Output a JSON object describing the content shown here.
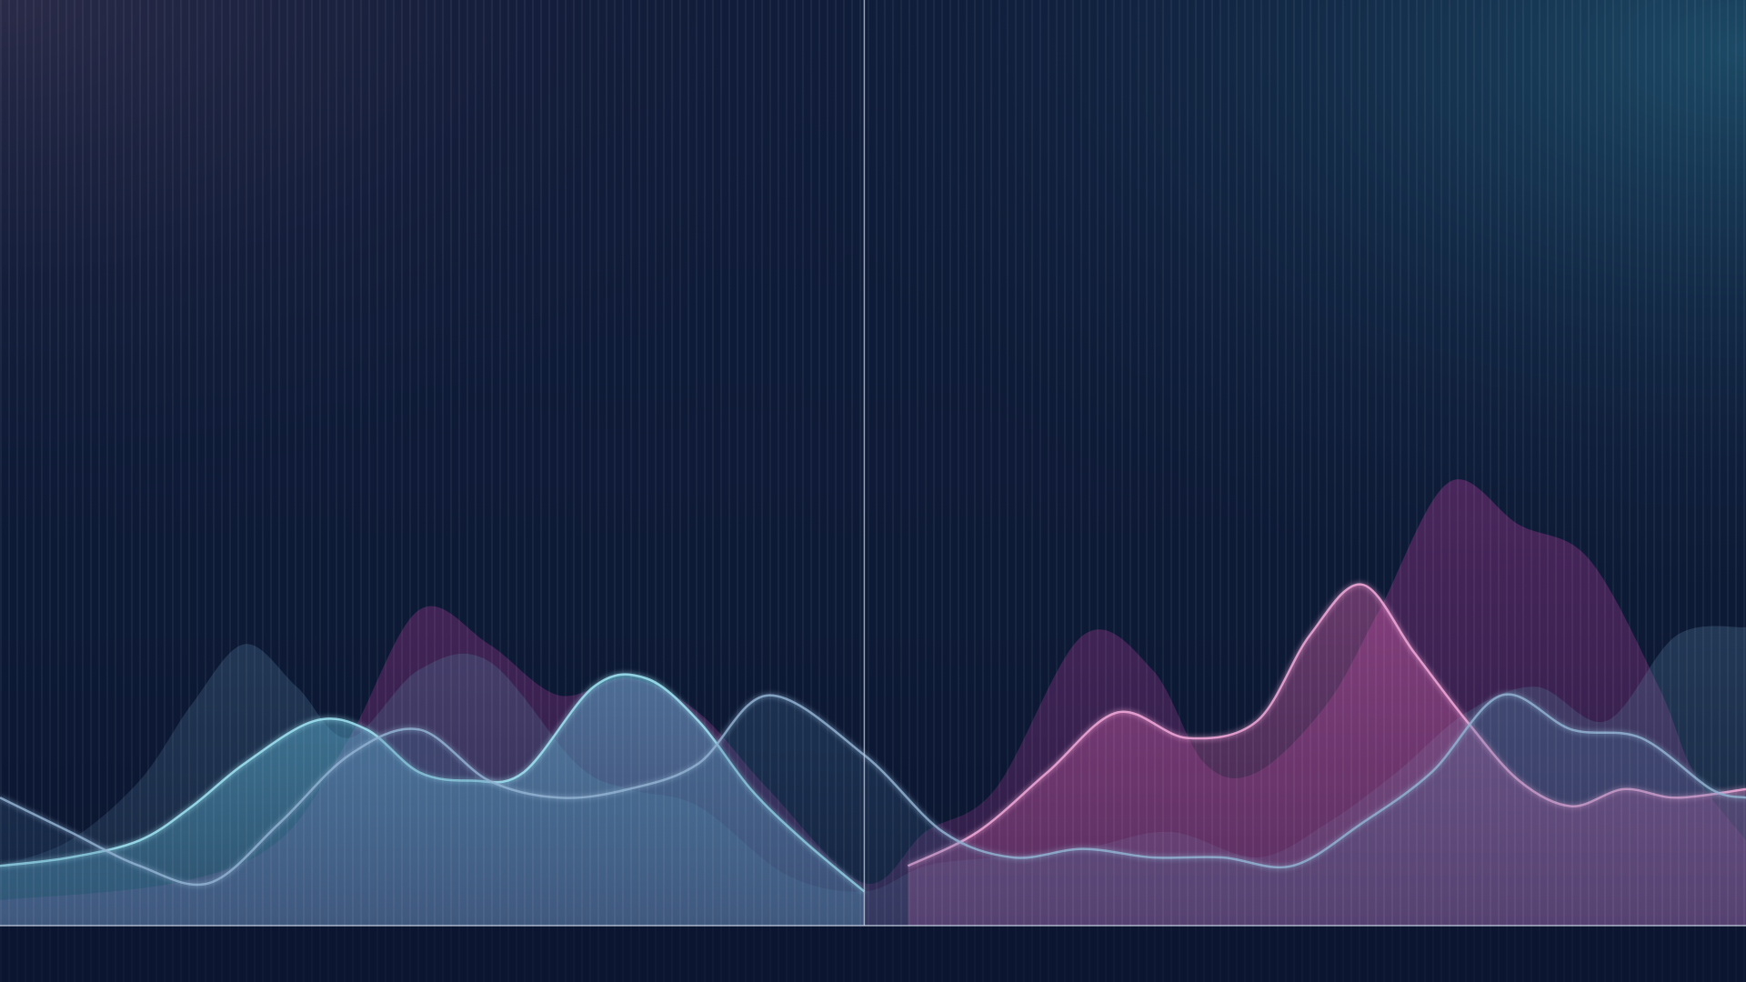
{
  "chart_data": {
    "type": "area",
    "title": "",
    "xlabel": "",
    "ylabel": "",
    "xlim": [
      0,
      100
    ],
    "ylim": [
      0,
      100
    ],
    "grid": true,
    "legend": "none",
    "crosshair_x": 49.5,
    "colors": {
      "background_top_left": "#2a2b48",
      "background_center": "#0d1a36",
      "background_top_right": "#1c4a66",
      "background_bottom": "#0b1530",
      "grid": "#4a6a9a",
      "axis": "#c9d3e6"
    },
    "series": [
      {
        "color": "#7a2f78",
        "opacity": 0.55,
        "x": [
          0,
          10,
          16,
          20,
          24,
          28,
          32,
          36,
          40,
          44,
          49.5,
          53,
          57,
          62,
          66,
          69,
          72,
          76,
          79,
          83,
          87,
          91,
          95,
          97,
          100
        ],
        "y": [
          3,
          5,
          10,
          22,
          37,
          33,
          27,
          29,
          25,
          16,
          5,
          11,
          16,
          34,
          30,
          19,
          18,
          26,
          37,
          52,
          47,
          43,
          28,
          18,
          10
        ]
      },
      {
        "color": "#4f7898",
        "opacity": 0.32,
        "x": [
          0,
          4,
          8,
          11,
          14,
          17,
          20,
          24,
          28,
          33,
          36,
          40,
          45,
          49.5,
          53,
          57,
          62,
          67,
          72,
          76,
          80,
          84,
          88,
          92,
          96,
          100
        ],
        "y": [
          7,
          10,
          17,
          26,
          33,
          28,
          22,
          30,
          31,
          19,
          16,
          14,
          6,
          4,
          7,
          8,
          9,
          11,
          8,
          12,
          18,
          25,
          28,
          24,
          34,
          35
        ]
      },
      {
        "color": "#5fb8d8",
        "opacity": 0.5,
        "stroke": "#9fe4f2",
        "x": [
          0,
          4,
          8,
          11,
          14,
          18,
          21,
          24,
          27,
          30,
          34,
          37,
          40,
          43,
          46,
          49.5
        ],
        "y": [
          7,
          8,
          10,
          14,
          19,
          24,
          23,
          18,
          17,
          18,
          28,
          29,
          24,
          16,
          10,
          4
        ]
      },
      {
        "color": "#d25fa8",
        "opacity": 0.45,
        "stroke": "#f2a8d8",
        "x": [
          52,
          56,
          60,
          64,
          68,
          72,
          75,
          78,
          81,
          84,
          87,
          90,
          93,
          96,
          100
        ],
        "y": [
          7,
          11,
          18,
          25,
          22,
          24,
          34,
          40,
          32,
          24,
          17,
          14,
          16,
          15,
          16
        ]
      },
      {
        "color": "#3f6a92",
        "opacity": 0.3,
        "stroke": "#8fb0d0",
        "x": [
          0,
          4,
          8,
          12,
          16,
          20,
          24,
          28,
          32,
          36,
          40,
          44,
          49.5,
          54,
          58,
          62,
          66,
          70,
          74,
          78,
          82,
          86,
          90,
          94,
          98,
          100
        ],
        "y": [
          15,
          11,
          7,
          5,
          12,
          20,
          23,
          17,
          15,
          16,
          19,
          27,
          20,
          11,
          8,
          9,
          8,
          8,
          7,
          12,
          18,
          27,
          23,
          22,
          16,
          15
        ]
      }
    ]
  }
}
